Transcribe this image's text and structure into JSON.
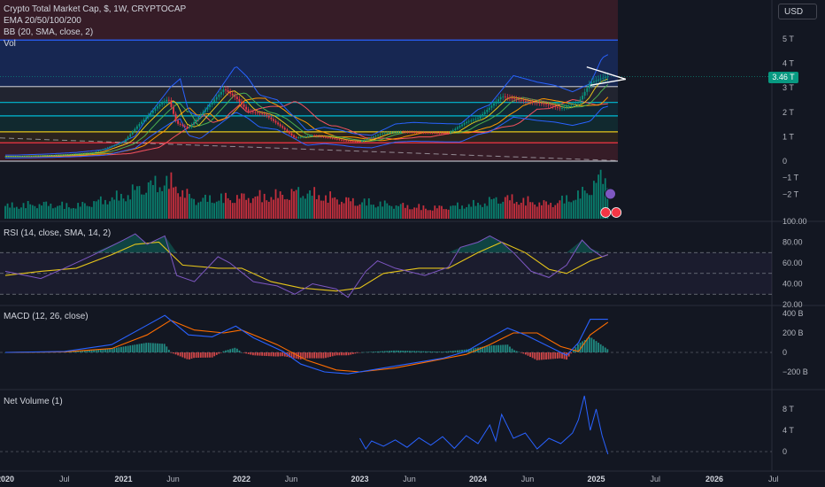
{
  "currency_label": "USD",
  "last_price_label": "3.46 T",
  "legend": {
    "main": [
      "Crypto Total Market Cap, $, 1W, CRYPTOCAP",
      "EMA 20/50/100/200",
      "BB (20, SMA, close, 2)",
      "Vol"
    ],
    "rsi": "RSI (14, close, SMA, 14, 2)",
    "macd": "MACD (12, 26, close)",
    "netvol": "Net Volume (1)"
  },
  "colors": {
    "background": "#131722",
    "up": "#089981",
    "down": "#f23645",
    "rsi_line": "#7e57c2",
    "rsi_ma": "#e5c41a",
    "macd_line": "#2962ff",
    "signal_line": "#ff6d00",
    "bb": "#2962ff",
    "netvol_line": "#2962ff"
  },
  "chart_data": [
    {
      "type": "line",
      "title": "Crypto Total Market Cap, $, 1W, CRYPTOCAP",
      "x_range": [
        "2020-01",
        "2026-07"
      ],
      "y_ticks": [
        "5 T",
        "4 T",
        "3 T",
        "2 T",
        "1 T",
        "0",
        "−1 T",
        "−2 T"
      ],
      "ylim": [
        -2.2,
        5.5
      ],
      "x_ticks": [
        "2020",
        "Jul",
        "2021",
        "Jun",
        "2022",
        "Jun",
        "2023",
        "Jun",
        "2024",
        "Jun",
        "2025",
        "Jul",
        "2026",
        "Jul"
      ],
      "horizontal_levels": [
        4.95,
        3.05,
        2.4,
        1.85,
        1.2,
        0.75,
        0.0
      ],
      "last_value": 3.46,
      "series": [
        {
          "values": [
            [
              2020.0,
              0.19
            ],
            [
              2020.25,
              0.22
            ],
            [
              2020.5,
              0.27
            ],
            [
              2020.75,
              0.36
            ],
            [
              2021.0,
              0.78
            ],
            [
              2021.12,
              1.45
            ],
            [
              2021.3,
              2.3
            ],
            [
              2021.38,
              2.55
            ],
            [
              2021.45,
              1.55
            ],
            [
              2021.55,
              1.35
            ],
            [
              2021.7,
              2.15
            ],
            [
              2021.85,
              2.95
            ],
            [
              2021.95,
              2.6
            ],
            [
              2022.05,
              2.05
            ],
            [
              2022.2,
              1.9
            ],
            [
              2022.35,
              1.35
            ],
            [
              2022.45,
              0.95
            ],
            [
              2022.6,
              1.05
            ],
            [
              2022.75,
              0.95
            ],
            [
              2022.85,
              0.85
            ],
            [
              2023.0,
              0.8
            ],
            [
              2023.2,
              1.15
            ],
            [
              2023.35,
              1.2
            ],
            [
              2023.55,
              1.17
            ],
            [
              2023.75,
              1.15
            ],
            [
              2023.9,
              1.6
            ],
            [
              2024.0,
              1.75
            ],
            [
              2024.2,
              2.65
            ],
            [
              2024.4,
              2.45
            ],
            [
              2024.55,
              2.35
            ],
            [
              2024.7,
              2.15
            ],
            [
              2024.85,
              2.4
            ],
            [
              2024.95,
              3.2
            ],
            [
              2025.05,
              3.4
            ],
            [
              2025.1,
              3.46
            ]
          ]
        }
      ]
    },
    {
      "type": "bar",
      "title": "Vol",
      "series": [
        {
          "values": [
            [
              2020.0,
              0.3
            ],
            [
              2020.3,
              0.35
            ],
            [
              2020.6,
              0.3
            ],
            [
              2021.0,
              0.55
            ],
            [
              2021.15,
              0.75
            ],
            [
              2021.3,
              0.85
            ],
            [
              2021.38,
              0.9
            ],
            [
              2021.6,
              0.45
            ],
            [
              2021.9,
              0.5
            ],
            [
              2022.3,
              0.55
            ],
            [
              2022.5,
              0.65
            ],
            [
              2022.85,
              0.45
            ],
            [
              2023.2,
              0.35
            ],
            [
              2023.6,
              0.25
            ],
            [
              2024.0,
              0.35
            ],
            [
              2024.2,
              0.5
            ],
            [
              2024.6,
              0.35
            ],
            [
              2024.85,
              0.55
            ],
            [
              2024.95,
              0.75
            ],
            [
              2025.05,
              1.0
            ]
          ]
        }
      ]
    },
    {
      "type": "line",
      "title": "RSI (14, close, SMA, 14, 2)",
      "y_ticks": [
        "100.00",
        "80.00",
        "60.00",
        "40.00",
        "20.00"
      ],
      "ylim": [
        20,
        100
      ],
      "bands": [
        30,
        50,
        70
      ],
      "series": [
        {
          "values": [
            [
              2020.0,
              52
            ],
            [
              2020.3,
              45
            ],
            [
              2020.5,
              55
            ],
            [
              2020.75,
              68
            ],
            [
              2021.0,
              82
            ],
            [
              2021.1,
              88
            ],
            [
              2021.2,
              78
            ],
            [
              2021.35,
              86
            ],
            [
              2021.45,
              48
            ],
            [
              2021.6,
              42
            ],
            [
              2021.8,
              66
            ],
            [
              2021.9,
              60
            ],
            [
              2022.1,
              42
            ],
            [
              2022.3,
              38
            ],
            [
              2022.45,
              30
            ],
            [
              2022.6,
              40
            ],
            [
              2022.8,
              35
            ],
            [
              2022.9,
              27
            ],
            [
              2023.05,
              52
            ],
            [
              2023.15,
              62
            ],
            [
              2023.3,
              55
            ],
            [
              2023.55,
              48
            ],
            [
              2023.75,
              56
            ],
            [
              2023.85,
              75
            ],
            [
              2024.0,
              80
            ],
            [
              2024.1,
              86
            ],
            [
              2024.2,
              80
            ],
            [
              2024.3,
              70
            ],
            [
              2024.45,
              52
            ],
            [
              2024.6,
              46
            ],
            [
              2024.75,
              58
            ],
            [
              2024.88,
              82
            ],
            [
              2024.95,
              74
            ],
            [
              2025.05,
              66
            ],
            [
              2025.1,
              68
            ]
          ]
        },
        {
          "values": [
            [
              2020.0,
              48
            ],
            [
              2020.3,
              52
            ],
            [
              2020.6,
              55
            ],
            [
              2020.9,
              68
            ],
            [
              2021.1,
              78
            ],
            [
              2021.3,
              80
            ],
            [
              2021.5,
              58
            ],
            [
              2021.8,
              55
            ],
            [
              2022.0,
              55
            ],
            [
              2022.25,
              42
            ],
            [
              2022.5,
              36
            ],
            [
              2022.8,
              33
            ],
            [
              2023.0,
              36
            ],
            [
              2023.2,
              50
            ],
            [
              2023.5,
              55
            ],
            [
              2023.75,
              55
            ],
            [
              2024.0,
              70
            ],
            [
              2024.2,
              80
            ],
            [
              2024.4,
              70
            ],
            [
              2024.6,
              54
            ],
            [
              2024.75,
              50
            ],
            [
              2024.95,
              62
            ],
            [
              2025.1,
              68
            ]
          ]
        }
      ]
    },
    {
      "type": "line",
      "title": "MACD (12, 26, close)",
      "y_ticks": [
        "400 B",
        "200 B",
        "0",
        "−200 B"
      ],
      "ylim": [
        -250,
        450
      ],
      "series": [
        {
          "values": [
            [
              2020.0,
              0
            ],
            [
              2020.5,
              10
            ],
            [
              2020.9,
              80
            ],
            [
              2021.2,
              280
            ],
            [
              2021.35,
              380
            ],
            [
              2021.55,
              180
            ],
            [
              2021.75,
              160
            ],
            [
              2021.95,
              270
            ],
            [
              2022.1,
              150
            ],
            [
              2022.35,
              10
            ],
            [
              2022.5,
              -120
            ],
            [
              2022.7,
              -200
            ],
            [
              2022.9,
              -220
            ],
            [
              2023.1,
              -180
            ],
            [
              2023.4,
              -120
            ],
            [
              2023.7,
              -60
            ],
            [
              2023.9,
              10
            ],
            [
              2024.1,
              150
            ],
            [
              2024.25,
              250
            ],
            [
              2024.4,
              180
            ],
            [
              2024.6,
              60
            ],
            [
              2024.75,
              -30
            ],
            [
              2024.85,
              100
            ],
            [
              2024.95,
              340
            ],
            [
              2025.1,
              340
            ]
          ]
        },
        {
          "values": [
            [
              2020.0,
              0
            ],
            [
              2020.5,
              5
            ],
            [
              2020.9,
              40
            ],
            [
              2021.2,
              180
            ],
            [
              2021.4,
              330
            ],
            [
              2021.6,
              230
            ],
            [
              2021.85,
              200
            ],
            [
              2022.0,
              230
            ],
            [
              2022.3,
              80
            ],
            [
              2022.55,
              -80
            ],
            [
              2022.8,
              -180
            ],
            [
              2023.0,
              -200
            ],
            [
              2023.3,
              -160
            ],
            [
              2023.6,
              -90
            ],
            [
              2023.9,
              -20
            ],
            [
              2024.1,
              80
            ],
            [
              2024.3,
              200
            ],
            [
              2024.5,
              200
            ],
            [
              2024.7,
              60
            ],
            [
              2024.85,
              10
            ],
            [
              2024.95,
              180
            ],
            [
              2025.1,
              310
            ]
          ]
        }
      ]
    },
    {
      "type": "line",
      "title": "Net Volume (1)",
      "y_ticks": [
        "8 T",
        "4 T",
        "0"
      ],
      "ylim": [
        -1,
        10
      ],
      "series": [
        {
          "values": [
            [
              2023.0,
              2.5
            ],
            [
              2023.05,
              0.5
            ],
            [
              2023.1,
              2.0
            ],
            [
              2023.2,
              1.0
            ],
            [
              2023.3,
              2.2
            ],
            [
              2023.4,
              0.8
            ],
            [
              2023.5,
              2.6
            ],
            [
              2023.6,
              1.2
            ],
            [
              2023.7,
              2.8
            ],
            [
              2023.8,
              0.6
            ],
            [
              2023.9,
              3.0
            ],
            [
              2024.0,
              1.5
            ],
            [
              2024.1,
              5.0
            ],
            [
              2024.15,
              2.0
            ],
            [
              2024.2,
              7.0
            ],
            [
              2024.3,
              2.5
            ],
            [
              2024.4,
              3.5
            ],
            [
              2024.5,
              0.5
            ],
            [
              2024.6,
              2.5
            ],
            [
              2024.7,
              1.5
            ],
            [
              2024.8,
              3.5
            ],
            [
              2024.85,
              6.0
            ],
            [
              2024.9,
              10.5
            ],
            [
              2024.95,
              4.0
            ],
            [
              2025.0,
              8.0
            ],
            [
              2025.05,
              3.0
            ],
            [
              2025.1,
              -0.5
            ]
          ]
        }
      ]
    }
  ]
}
